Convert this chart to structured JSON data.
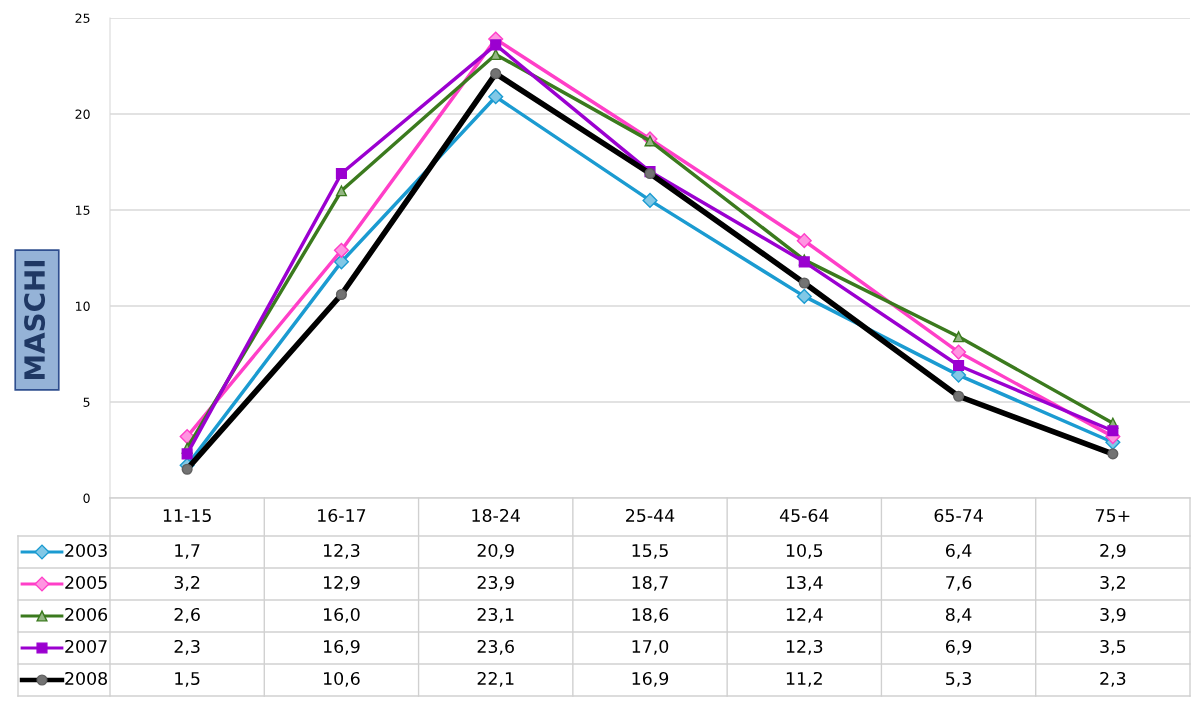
{
  "chart_data": {
    "type": "line",
    "ylabel": "MASCHI",
    "categories": [
      "11-15",
      "16-17",
      "18-24",
      "25-44",
      "45-64",
      "65-74",
      "75+"
    ],
    "ylim": [
      0,
      25
    ],
    "yticks": [
      0,
      5,
      10,
      15,
      20,
      25
    ],
    "grid": "y",
    "legend": "bottom",
    "data_labels": true,
    "series": [
      {
        "name": "2003",
        "color": "#1b9bd1",
        "marker": "diamond",
        "values": [
          1.7,
          12.3,
          20.9,
          15.5,
          10.5,
          6.4,
          2.9
        ],
        "value_labels": [
          "1,7",
          "12,3",
          "20,9",
          "15,5",
          "10,5",
          "6,4",
          "2,9"
        ]
      },
      {
        "name": "2005",
        "color": "#ff3fc8",
        "marker": "diamond",
        "values": [
          3.2,
          12.9,
          23.9,
          18.7,
          13.4,
          7.6,
          3.2
        ],
        "value_labels": [
          "3,2",
          "12,9",
          "23,9",
          "18,7",
          "13,4",
          "7,6",
          "3,2"
        ]
      },
      {
        "name": "2006",
        "color": "#3b7a1e",
        "marker": "triangle",
        "values": [
          2.6,
          16.0,
          23.1,
          18.6,
          12.4,
          8.4,
          3.9
        ],
        "value_labels": [
          "2,6",
          "16,0",
          "23,1",
          "18,6",
          "12,4",
          "8,4",
          "3,9"
        ]
      },
      {
        "name": "2007",
        "color": "#9b00d0",
        "marker": "square",
        "values": [
          2.3,
          16.9,
          23.6,
          17.0,
          12.3,
          6.9,
          3.5
        ],
        "value_labels": [
          "2,3",
          "16,9",
          "23,6",
          "17,0",
          "12,3",
          "6,9",
          "3,5"
        ]
      },
      {
        "name": "2008",
        "color": "#000000",
        "marker": "circle",
        "values": [
          1.5,
          10.6,
          22.1,
          16.9,
          11.2,
          5.3,
          2.3
        ],
        "value_labels": [
          "1,5",
          "10,6",
          "22,1",
          "16,9",
          "11,2",
          "5,3",
          "2,3"
        ]
      }
    ]
  }
}
